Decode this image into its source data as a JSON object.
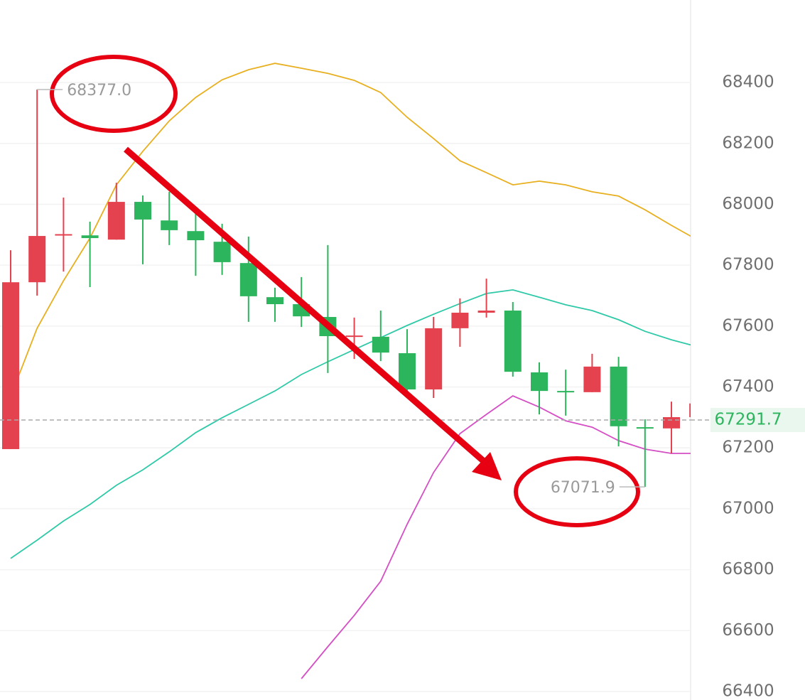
{
  "chart_data": {
    "type": "candlestick",
    "open": [
      67196,
      67744,
      67898,
      67898,
      67884,
      68008,
      67947,
      67912,
      67877,
      67807,
      67695,
      67672,
      67630,
      67565,
      67565,
      67511,
      67392,
      67593,
      67644,
      67651,
      67448,
      67387,
      67383,
      67467,
      67268,
      67264,
      67301
    ],
    "close": [
      67744,
      67896,
      67902,
      67889,
      68008,
      67950,
      67915,
      67882,
      67810,
      67698,
      67672,
      67632,
      67567,
      67569,
      67513,
      67392,
      67593,
      67644,
      67651,
      67450,
      67387,
      67385,
      67467,
      67271,
      67266,
      67301,
      67346
    ],
    "high": [
      67849,
      68377,
      68022,
      67943,
      68071,
      68029,
      68041,
      67975,
      67936,
      67894,
      67726,
      67761,
      67866,
      67628,
      67651,
      67590,
      67630,
      67691,
      67756,
      67679,
      67481,
      67457,
      67509,
      67499,
      67294,
      67352,
      67346
    ],
    "low": [
      67196,
      67700,
      67779,
      67728,
      67884,
      67803,
      67866,
      67765,
      67768,
      67614,
      67614,
      67597,
      67446,
      67492,
      67485,
      67376,
      67364,
      67532,
      67628,
      67434,
      67310,
      67306,
      67383,
      67205,
      67071.9,
      67182,
      67301
    ],
    "up_color": "#e5424f",
    "down_color": "#2db55d",
    "overlays": [
      {
        "color": "#e8b020",
        "values": [
          67369,
          67593,
          67749,
          67889,
          68064,
          68174,
          68274,
          68351,
          68409,
          68442,
          68463,
          68447,
          68430,
          68407,
          68367,
          68286,
          68216,
          68143,
          68104,
          68064,
          68076,
          68064,
          68041,
          68027,
          67982,
          67931,
          67882
        ]
      },
      {
        "color": "#2fc9a8",
        "values": [
          66837,
          66897,
          66960,
          67014,
          67077,
          67128,
          67187,
          67250,
          67299,
          67343,
          67387,
          67441,
          67483,
          67523,
          67562,
          67602,
          67639,
          67674,
          67707,
          67719,
          67695,
          67670,
          67651,
          67621,
          67583,
          67555,
          67532
        ]
      },
      {
        "color": "#d44fc4",
        "values": [
          null,
          null,
          null,
          null,
          null,
          null,
          null,
          null,
          null,
          null,
          null,
          66442,
          66547,
          66650,
          66762,
          66949,
          67119,
          67247,
          67310,
          67371,
          67334,
          67289,
          67268,
          67224,
          67196,
          67182,
          67182
        ]
      }
    ],
    "max_point": {
      "value": 68377,
      "label": "68377.0"
    },
    "last_price": 67291.7,
    "ylim": [
      66372,
      68671
    ],
    "yticks": [
      66400,
      66600,
      66800,
      67000,
      67200,
      67400,
      67600,
      67800,
      68000,
      68200,
      68400
    ],
    "grid": true
  }
}
